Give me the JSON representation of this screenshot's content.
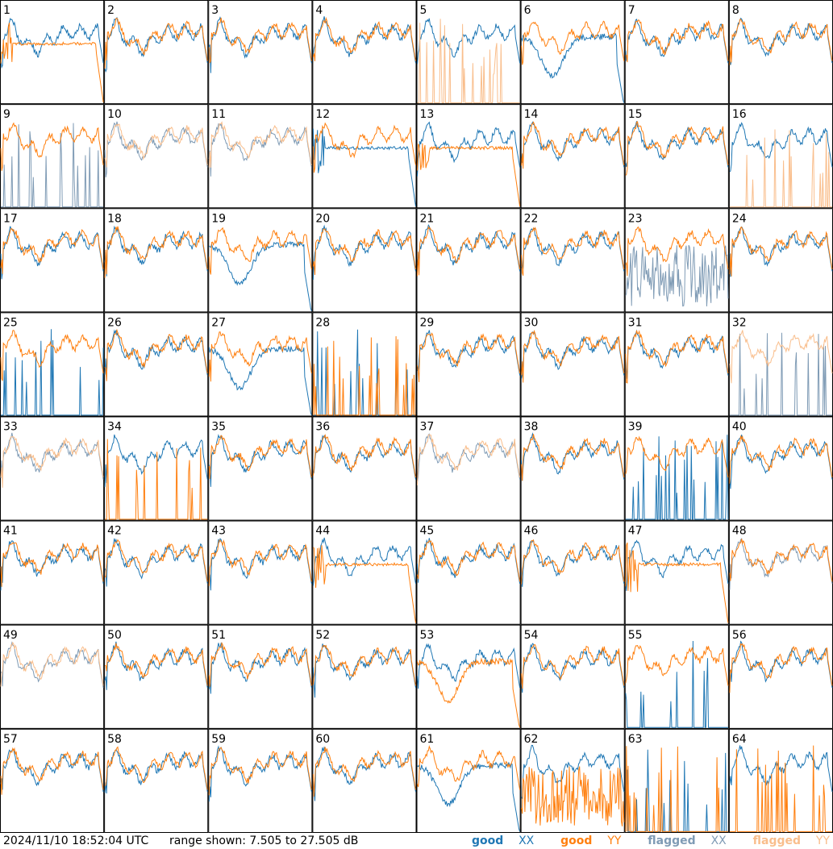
{
  "footer": {
    "timestamp": "2024/11/10 18:52:04 UTC",
    "range": "range shown: 7.505 to 27.505 dB"
  },
  "legend": [
    {
      "label": "good",
      "pol": "XX",
      "color": "#1f77b4"
    },
    {
      "label": "good",
      "pol": "YY",
      "color": "#ff7f0e"
    },
    {
      "label": "flagged",
      "pol": "XX",
      "color": "#7f9bb5"
    },
    {
      "label": "flagged",
      "pol": "YY",
      "color": "#f9be8c"
    }
  ],
  "chart_data": {
    "type": "line",
    "grid": {
      "rows": 8,
      "cols": 8
    },
    "ylim_db": [
      7.505,
      27.505
    ],
    "colors": {
      "good_xx": "#1f77b4",
      "good_yy": "#ff7f0e",
      "flagged_xx": "#7f9bb5",
      "flagged_yy": "#f9be8c"
    },
    "panels": [
      {
        "label": "1",
        "xx": "good",
        "yy": "good",
        "xx_shape": "normal",
        "yy_shape": "plateau"
      },
      {
        "label": "2",
        "xx": "good",
        "yy": "good",
        "xx_shape": "normal",
        "yy_shape": "normal"
      },
      {
        "label": "3",
        "xx": "good",
        "yy": "good",
        "xx_shape": "normal",
        "yy_shape": "normal"
      },
      {
        "label": "4",
        "xx": "good",
        "yy": "good",
        "xx_shape": "normal",
        "yy_shape": "normal"
      },
      {
        "label": "5",
        "xx": "good",
        "yy": "flagged",
        "xx_shape": "normal",
        "yy_shape": "spikes"
      },
      {
        "label": "6",
        "xx": "good",
        "yy": "good",
        "xx_shape": "dip",
        "yy_shape": "normal"
      },
      {
        "label": "7",
        "xx": "good",
        "yy": "good",
        "xx_shape": "normal",
        "yy_shape": "normal"
      },
      {
        "label": "8",
        "xx": "good",
        "yy": "good",
        "xx_shape": "normal",
        "yy_shape": "normal"
      },
      {
        "label": "9",
        "xx": "flagged",
        "yy": "good",
        "xx_shape": "spikes",
        "yy_shape": "normal"
      },
      {
        "label": "10",
        "xx": "flagged",
        "yy": "flagged",
        "xx_shape": "normal",
        "yy_shape": "normal"
      },
      {
        "label": "11",
        "xx": "flagged",
        "yy": "flagged",
        "xx_shape": "normal",
        "yy_shape": "normal"
      },
      {
        "label": "12",
        "xx": "good",
        "yy": "good",
        "xx_shape": "plateau",
        "yy_shape": "normal"
      },
      {
        "label": "13",
        "xx": "good",
        "yy": "good",
        "xx_shape": "normal",
        "yy_shape": "plateau"
      },
      {
        "label": "14",
        "xx": "good",
        "yy": "good",
        "xx_shape": "normal",
        "yy_shape": "normal"
      },
      {
        "label": "15",
        "xx": "good",
        "yy": "good",
        "xx_shape": "normal",
        "yy_shape": "normal"
      },
      {
        "label": "16",
        "xx": "good",
        "yy": "flagged",
        "xx_shape": "normal",
        "yy_shape": "spikes"
      },
      {
        "label": "17",
        "xx": "good",
        "yy": "good",
        "xx_shape": "normal",
        "yy_shape": "normal"
      },
      {
        "label": "18",
        "xx": "good",
        "yy": "good",
        "xx_shape": "normal",
        "yy_shape": "normal"
      },
      {
        "label": "19",
        "xx": "good",
        "yy": "good",
        "xx_shape": "dip",
        "yy_shape": "normal"
      },
      {
        "label": "20",
        "xx": "good",
        "yy": "good",
        "xx_shape": "normal",
        "yy_shape": "normal"
      },
      {
        "label": "21",
        "xx": "good",
        "yy": "good",
        "xx_shape": "normal",
        "yy_shape": "normal"
      },
      {
        "label": "22",
        "xx": "good",
        "yy": "good",
        "xx_shape": "normal",
        "yy_shape": "normal"
      },
      {
        "label": "23",
        "xx": "flagged",
        "yy": "good",
        "xx_shape": "noisy",
        "yy_shape": "normal"
      },
      {
        "label": "24",
        "xx": "good",
        "yy": "good",
        "xx_shape": "normal",
        "yy_shape": "normal"
      },
      {
        "label": "25",
        "xx": "good",
        "yy": "good",
        "xx_shape": "spikes",
        "yy_shape": "normal"
      },
      {
        "label": "26",
        "xx": "good",
        "yy": "good",
        "xx_shape": "normal",
        "yy_shape": "normal"
      },
      {
        "label": "27",
        "xx": "good",
        "yy": "good",
        "xx_shape": "dip",
        "yy_shape": "normal"
      },
      {
        "label": "28",
        "xx": "good",
        "yy": "good",
        "xx_shape": "spikes",
        "yy_shape": "spikes"
      },
      {
        "label": "29",
        "xx": "good",
        "yy": "good",
        "xx_shape": "normal",
        "yy_shape": "normal"
      },
      {
        "label": "30",
        "xx": "good",
        "yy": "good",
        "xx_shape": "normal",
        "yy_shape": "normal"
      },
      {
        "label": "31",
        "xx": "good",
        "yy": "good",
        "xx_shape": "normal",
        "yy_shape": "normal"
      },
      {
        "label": "32",
        "xx": "flagged",
        "yy": "flagged",
        "xx_shape": "spikes",
        "yy_shape": "normal"
      },
      {
        "label": "33",
        "xx": "flagged",
        "yy": "flagged",
        "xx_shape": "normal",
        "yy_shape": "normal"
      },
      {
        "label": "34",
        "xx": "good",
        "yy": "good",
        "xx_shape": "normal",
        "yy_shape": "spikes"
      },
      {
        "label": "35",
        "xx": "good",
        "yy": "good",
        "xx_shape": "normal",
        "yy_shape": "normal"
      },
      {
        "label": "36",
        "xx": "good",
        "yy": "good",
        "xx_shape": "normal",
        "yy_shape": "normal"
      },
      {
        "label": "37",
        "xx": "flagged",
        "yy": "flagged",
        "xx_shape": "normal",
        "yy_shape": "normal"
      },
      {
        "label": "38",
        "xx": "good",
        "yy": "good",
        "xx_shape": "normal",
        "yy_shape": "normal"
      },
      {
        "label": "39",
        "xx": "good",
        "yy": "good",
        "xx_shape": "spikes",
        "yy_shape": "normal"
      },
      {
        "label": "40",
        "xx": "good",
        "yy": "good",
        "xx_shape": "normal",
        "yy_shape": "normal"
      },
      {
        "label": "41",
        "xx": "good",
        "yy": "good",
        "xx_shape": "normal",
        "yy_shape": "normal"
      },
      {
        "label": "42",
        "xx": "good",
        "yy": "good",
        "xx_shape": "normal",
        "yy_shape": "normal"
      },
      {
        "label": "43",
        "xx": "good",
        "yy": "good",
        "xx_shape": "normal",
        "yy_shape": "normal"
      },
      {
        "label": "44",
        "xx": "good",
        "yy": "good",
        "xx_shape": "normal",
        "yy_shape": "plateau"
      },
      {
        "label": "45",
        "xx": "good",
        "yy": "good",
        "xx_shape": "normal",
        "yy_shape": "normal"
      },
      {
        "label": "46",
        "xx": "good",
        "yy": "good",
        "xx_shape": "normal",
        "yy_shape": "normal"
      },
      {
        "label": "47",
        "xx": "good",
        "yy": "good",
        "xx_shape": "normal",
        "yy_shape": "plateau"
      },
      {
        "label": "48",
        "xx": "flagged",
        "yy": "good",
        "xx_shape": "normal",
        "yy_shape": "normal"
      },
      {
        "label": "49",
        "xx": "flagged",
        "yy": "flagged",
        "xx_shape": "normal",
        "yy_shape": "normal"
      },
      {
        "label": "50",
        "xx": "good",
        "yy": "good",
        "xx_shape": "normal",
        "yy_shape": "normal"
      },
      {
        "label": "51",
        "xx": "good",
        "yy": "good",
        "xx_shape": "normal",
        "yy_shape": "normal"
      },
      {
        "label": "52",
        "xx": "good",
        "yy": "good",
        "xx_shape": "normal",
        "yy_shape": "normal"
      },
      {
        "label": "53",
        "xx": "good",
        "yy": "good",
        "xx_shape": "normal",
        "yy_shape": "dip"
      },
      {
        "label": "54",
        "xx": "good",
        "yy": "good",
        "xx_shape": "normal",
        "yy_shape": "normal"
      },
      {
        "label": "55",
        "xx": "good",
        "yy": "good",
        "xx_shape": "spikes",
        "yy_shape": "normal"
      },
      {
        "label": "56",
        "xx": "good",
        "yy": "good",
        "xx_shape": "normal",
        "yy_shape": "normal"
      },
      {
        "label": "57",
        "xx": "good",
        "yy": "good",
        "xx_shape": "normal",
        "yy_shape": "normal"
      },
      {
        "label": "58",
        "xx": "good",
        "yy": "good",
        "xx_shape": "normal",
        "yy_shape": "normal"
      },
      {
        "label": "59",
        "xx": "good",
        "yy": "good",
        "xx_shape": "normal",
        "yy_shape": "normal"
      },
      {
        "label": "60",
        "xx": "good",
        "yy": "good",
        "xx_shape": "normal",
        "yy_shape": "normal"
      },
      {
        "label": "61",
        "xx": "good",
        "yy": "good",
        "xx_shape": "dip",
        "yy_shape": "normal"
      },
      {
        "label": "62",
        "xx": "good",
        "yy": "good",
        "xx_shape": "normal",
        "yy_shape": "noisy"
      },
      {
        "label": "63",
        "xx": "good",
        "yy": "good",
        "xx_shape": "spikes",
        "yy_shape": "spikes"
      },
      {
        "label": "64",
        "xx": "good",
        "yy": "good",
        "xx_shape": "normal",
        "yy_shape": "spikes"
      }
    ]
  }
}
